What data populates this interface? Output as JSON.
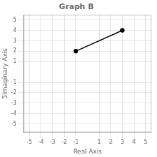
{
  "chart_data": {
    "type": "line",
    "title": "Graph B",
    "x_label": "Real Axis",
    "y_label": "5Imaginary Axis",
    "x": [
      -1,
      3
    ],
    "values": [
      2,
      4
    ],
    "color": "black",
    "marker": "o",
    "line_style": "solid",
    "xlim": [
      -5.5,
      5.5
    ],
    "ylim": [
      -5.8,
      5.5
    ],
    "xticks": [
      -5,
      -4,
      -3,
      -2,
      -1,
      1,
      2,
      3,
      4,
      5
    ],
    "yticks": [
      -5,
      -4,
      -3,
      -2,
      -1,
      1,
      2,
      3,
      4,
      5
    ],
    "grid": true,
    "legend": false
  }
}
